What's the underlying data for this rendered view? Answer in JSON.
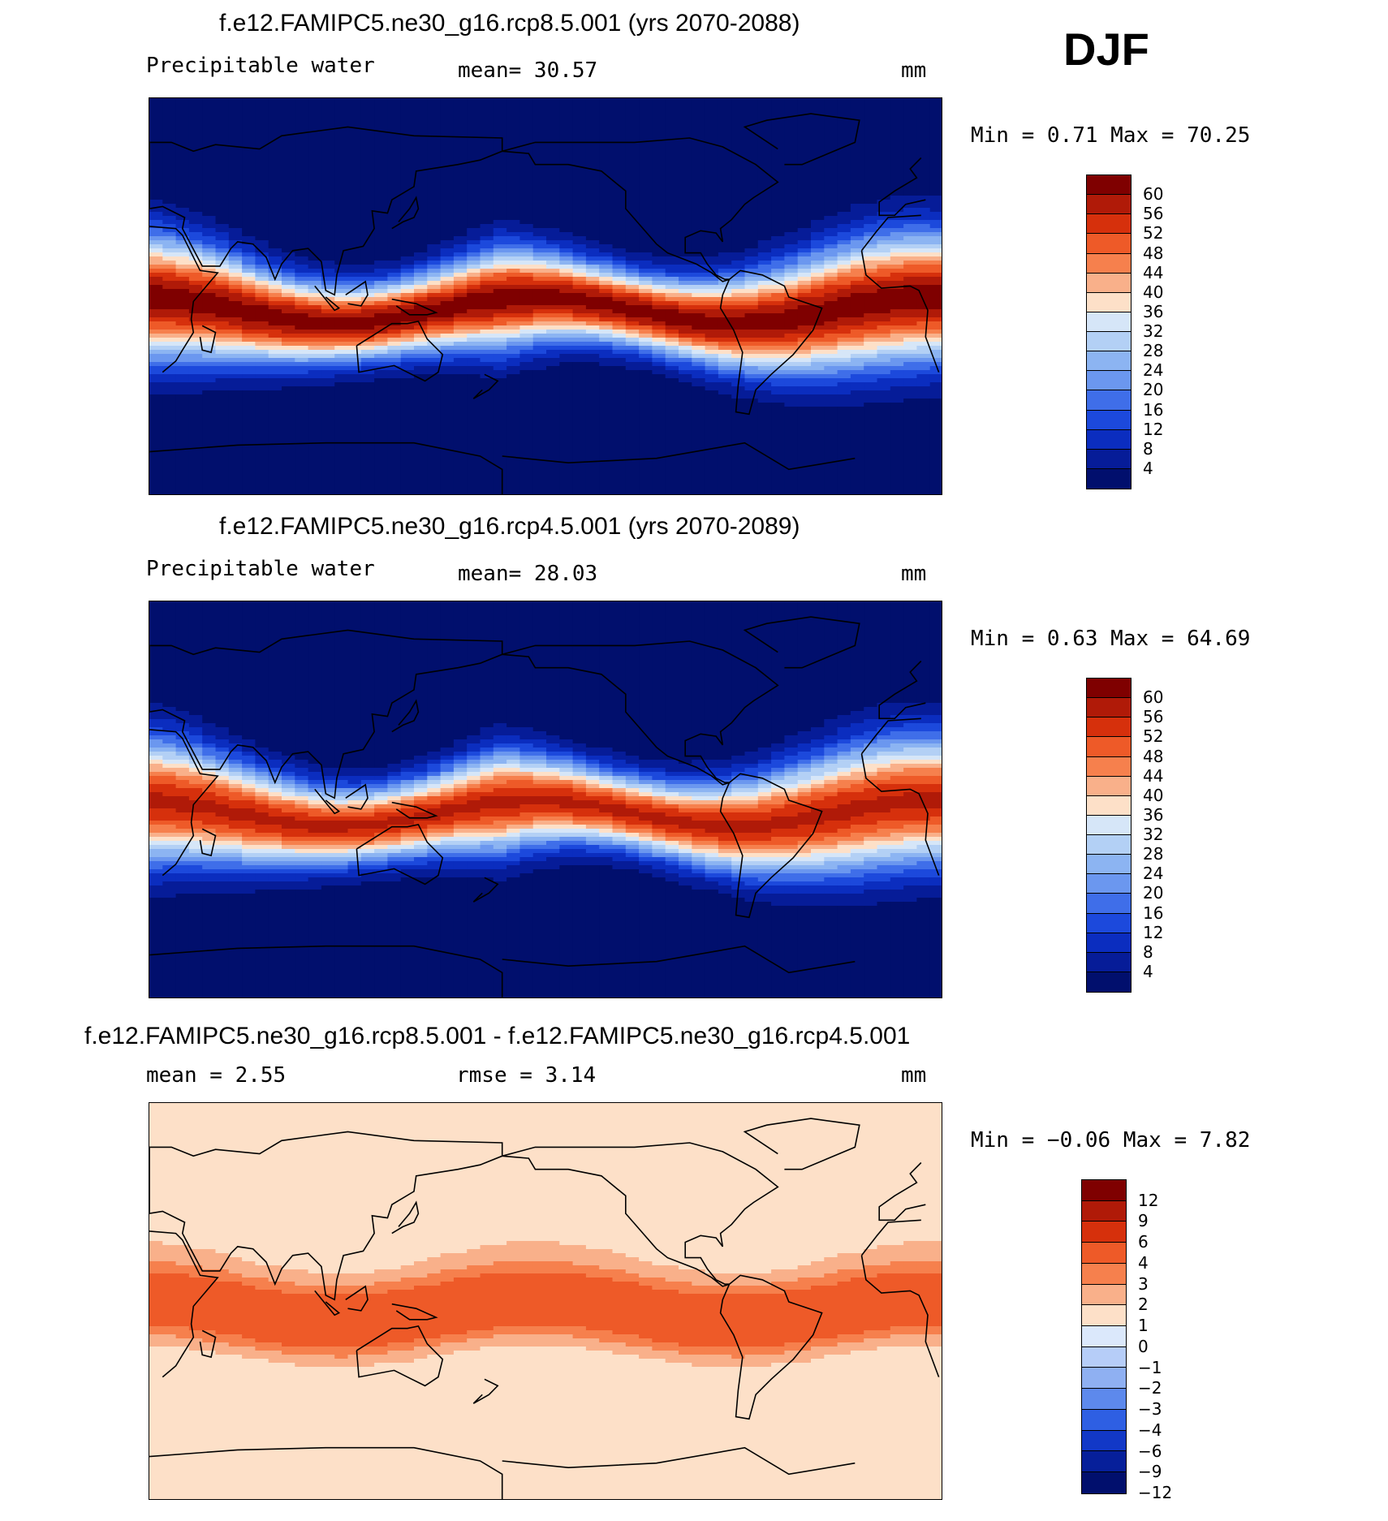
{
  "season_label": "DJF",
  "panels": [
    {
      "title": "f.e12.FAMIPC5.ne30_g16.rcp8.5.001 (yrs 2070-2088)",
      "variable": "Precipitable water",
      "stat": "mean=   30.57",
      "stat2": "",
      "unit": "mm",
      "minmax": "Min =    0.71 Max =   70.25",
      "scale": "abs",
      "colorbar": {
        "colors": [
          "#7f0000",
          "#b01a08",
          "#d6300c",
          "#ee5a28",
          "#f6804d",
          "#f9b08a",
          "#fde0c8",
          "#d6e6f8",
          "#b3d0f5",
          "#8cb4f2",
          "#6b97ef",
          "#3f6ee9",
          "#1c49dc",
          "#0b2dbf",
          "#061c98",
          "#010f6d"
        ],
        "labels": [
          "60",
          "56",
          "52",
          "48",
          "44",
          "40",
          "36",
          "32",
          "28",
          "24",
          "20",
          "16",
          "12",
          "8",
          "4"
        ]
      }
    },
    {
      "title": "f.e12.FAMIPC5.ne30_g16.rcp4.5.001 (yrs 2070-2089)",
      "variable": "Precipitable water",
      "stat": "mean=   28.03",
      "stat2": "",
      "unit": "mm",
      "minmax": "Min =    0.63 Max =   64.69",
      "scale": "abs",
      "colorbar": {
        "colors": [
          "#7f0000",
          "#b01a08",
          "#d6300c",
          "#ee5a28",
          "#f6804d",
          "#f9b08a",
          "#fde0c8",
          "#d6e6f8",
          "#b3d0f5",
          "#8cb4f2",
          "#6b97ef",
          "#3f6ee9",
          "#1c49dc",
          "#0b2dbf",
          "#061c98",
          "#010f6d"
        ],
        "labels": [
          "60",
          "56",
          "52",
          "48",
          "44",
          "40",
          "36",
          "32",
          "28",
          "24",
          "20",
          "16",
          "12",
          "8",
          "4"
        ]
      }
    },
    {
      "title": "f.e12.FAMIPC5.ne30_g16.rcp8.5.001 - f.e12.FAMIPC5.ne30_g16.rcp4.5.001",
      "variable": "mean =    2.55",
      "stat": "rmse =    3.14",
      "stat2": "",
      "unit": "mm",
      "minmax": "Min =  −0.06 Max =    7.82",
      "scale": "diff",
      "colorbar": {
        "colors": [
          "#7f0000",
          "#b01a08",
          "#d6300c",
          "#ee5a28",
          "#f6804d",
          "#f9b08a",
          "#fde0c8",
          "#dbe8fb",
          "#b6cdf8",
          "#8fb0f2",
          "#5d89ec",
          "#2e5fe3",
          "#1238c7",
          "#061f9a",
          "#010f6d"
        ],
        "labels": [
          "12",
          "9",
          "6",
          "4",
          "3",
          "2",
          "1",
          "0",
          "−1",
          "−2",
          "−3",
          "−4",
          "−6",
          "−9",
          "−12"
        ]
      }
    }
  ]
}
